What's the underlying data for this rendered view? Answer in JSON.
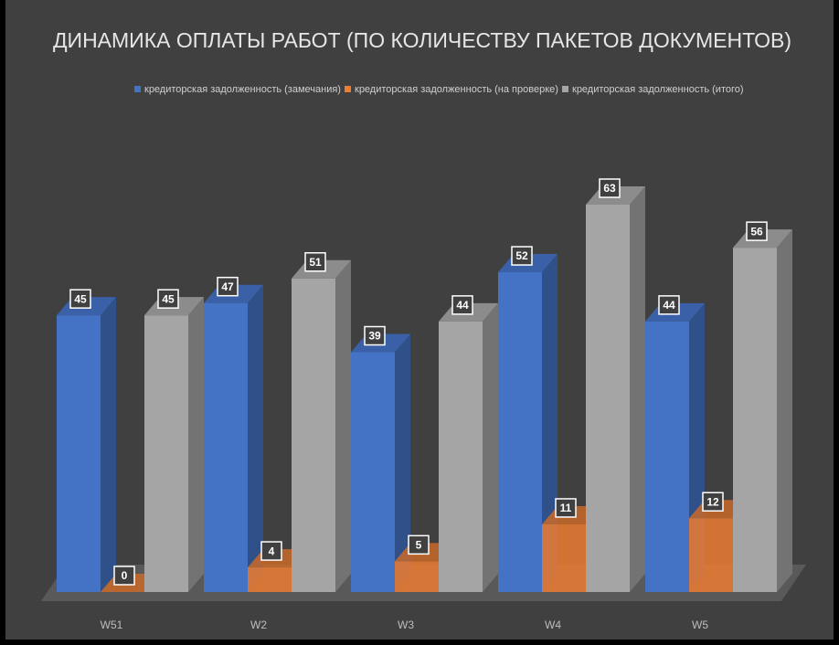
{
  "chart_data": {
    "type": "bar3d",
    "title": "ДИНАМИКА ОПЛАТЫ РАБОТ (ПО КОЛИЧЕСТВУ ПАКЕТОВ ДОКУМЕНТОВ)",
    "categories": [
      "W51",
      "W2",
      "W3",
      "W4",
      "W5"
    ],
    "series": [
      {
        "name": "кредиторская задолженность (замечания)",
        "color": "#4472c4",
        "values": [
          45,
          47,
          39,
          52,
          44
        ]
      },
      {
        "name": "кредиторская задолженность (на проверке)",
        "color": "#ed7d31",
        "values": [
          0,
          4,
          5,
          11,
          12
        ]
      },
      {
        "name": "кредиторская задолженность (итого)",
        "color": "#a5a5a5",
        "values": [
          45,
          51,
          44,
          63,
          56
        ]
      }
    ],
    "legend": "top"
  }
}
